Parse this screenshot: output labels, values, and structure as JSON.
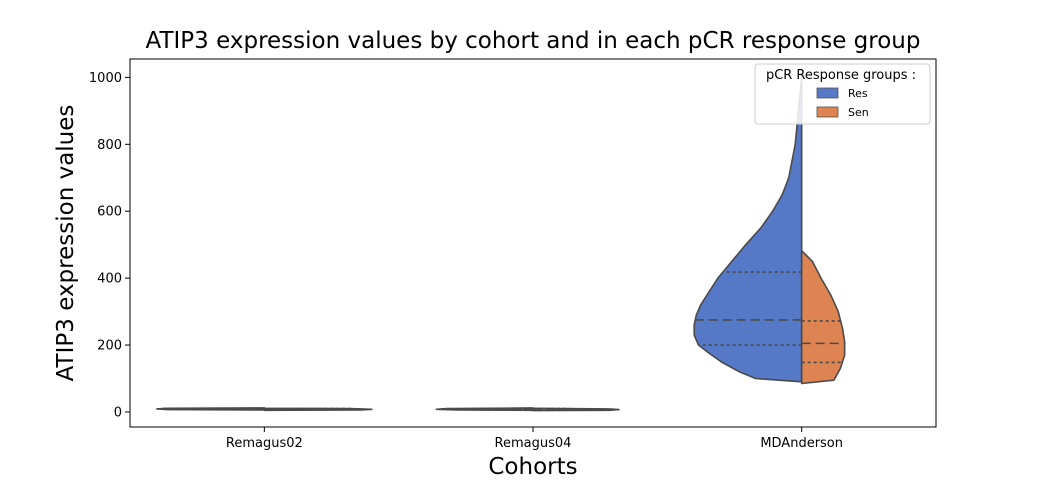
{
  "chart_data": {
    "type": "violin",
    "title": "ATIP3 expression values by cohort and in each pCR response group",
    "xlabel": "Cohorts",
    "ylabel": "ATIP3 expression values",
    "categories": [
      "Remagus02",
      "Remagus04",
      "MDAnderson"
    ],
    "ylim": [
      -45,
      1055
    ],
    "yticks": [
      0,
      200,
      400,
      600,
      800,
      1000
    ],
    "split": true,
    "inner": "quartile",
    "legend": {
      "title": "pCR Response groups :",
      "placement": "top-right",
      "entries": [
        {
          "label": "Res",
          "color": "#5579c6"
        },
        {
          "label": "Sen",
          "color": "#dd8452"
        }
      ]
    },
    "series": [
      {
        "name": "Res",
        "color": "#5579c6",
        "violins": [
          {
            "category": "Remagus02",
            "min": 6,
            "max": 12,
            "q1": 8,
            "median": 10,
            "q3": 11,
            "profile": [
              [
                6,
                0.0
              ],
              [
                7,
                0.9
              ],
              [
                9,
                1.0
              ],
              [
                11,
                0.9
              ],
              [
                12,
                0.0
              ]
            ]
          },
          {
            "category": "Remagus04",
            "min": 5,
            "max": 12,
            "q1": 7,
            "median": 9,
            "q3": 11,
            "profile": [
              [
                5,
                0.0
              ],
              [
                6,
                0.7
              ],
              [
                8,
                0.9
              ],
              [
                10,
                0.8
              ],
              [
                12,
                0.0
              ]
            ]
          },
          {
            "category": "MDAnderson",
            "min": 90,
            "max": 1000,
            "q1": 200,
            "median": 275,
            "q3": 418,
            "profile": [
              [
                90,
                0.0
              ],
              [
                100,
                0.43
              ],
              [
                120,
                0.58
              ],
              [
                150,
                0.75
              ],
              [
                180,
                0.88
              ],
              [
                200,
                0.96
              ],
              [
                230,
                1.0
              ],
              [
                260,
                1.0
              ],
              [
                290,
                0.98
              ],
              [
                320,
                0.94
              ],
              [
                350,
                0.88
              ],
              [
                400,
                0.78
              ],
              [
                450,
                0.65
              ],
              [
                500,
                0.52
              ],
              [
                550,
                0.38
              ],
              [
                600,
                0.27
              ],
              [
                650,
                0.18
              ],
              [
                700,
                0.12
              ],
              [
                800,
                0.06
              ],
              [
                900,
                0.03
              ],
              [
                1000,
                0.0
              ]
            ]
          }
        ]
      },
      {
        "name": "Sen",
        "color": "#dd8452",
        "violins": [
          {
            "category": "Remagus02",
            "min": 5,
            "max": 11,
            "q1": 7,
            "median": 8,
            "q3": 10,
            "profile": [
              [
                5,
                0.0
              ],
              [
                6,
                0.9
              ],
              [
                8,
                1.0
              ],
              [
                10,
                0.8
              ],
              [
                11,
                0.0
              ]
            ]
          },
          {
            "category": "Remagus04",
            "min": 4,
            "max": 11,
            "q1": 6,
            "median": 8,
            "q3": 10,
            "profile": [
              [
                4,
                0.0
              ],
              [
                5,
                0.7
              ],
              [
                7,
                0.8
              ],
              [
                9,
                0.7
              ],
              [
                11,
                0.0
              ]
            ]
          },
          {
            "category": "MDAnderson",
            "min": 85,
            "max": 482,
            "q1": 148,
            "median": 205,
            "q3": 272,
            "profile": [
              [
                85,
                0.0
              ],
              [
                95,
                0.3
              ],
              [
                130,
                0.36
              ],
              [
                170,
                0.4
              ],
              [
                210,
                0.4
              ],
              [
                250,
                0.38
              ],
              [
                300,
                0.34
              ],
              [
                350,
                0.27
              ],
              [
                400,
                0.18
              ],
              [
                450,
                0.1
              ],
              [
                482,
                0.0
              ]
            ]
          }
        ]
      }
    ]
  }
}
